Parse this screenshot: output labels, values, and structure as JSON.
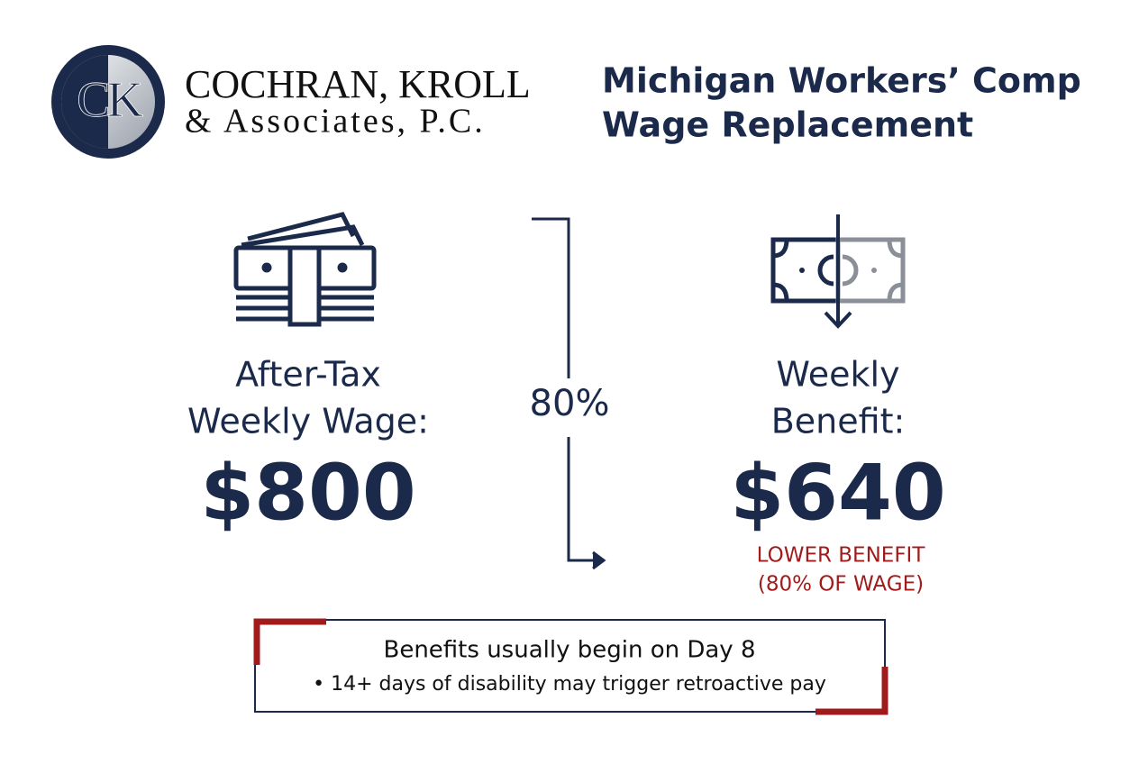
{
  "logo": {
    "monogram": "CK",
    "name_line1": "COCHRAN, KROLL",
    "name_line2": "& Associates, P.C."
  },
  "title": {
    "line1": "Michigan Workers’ Comp",
    "line2": "Wage Replacement"
  },
  "left": {
    "label_line1": "After-Tax",
    "label_line2": "Weekly Wage:",
    "amount": "$800"
  },
  "middle": {
    "rate": "80%"
  },
  "right": {
    "label_line1": "Weekly",
    "label_line2": "Benefit:",
    "amount": "$640",
    "note_line1": "LOWER BENEFIT",
    "note_line2": "(80% OF WAGE)"
  },
  "note_box": {
    "heading": "Benefits usually begin on Day 8",
    "bullet": "• 14+ days of disability may trigger retroactive pay"
  }
}
